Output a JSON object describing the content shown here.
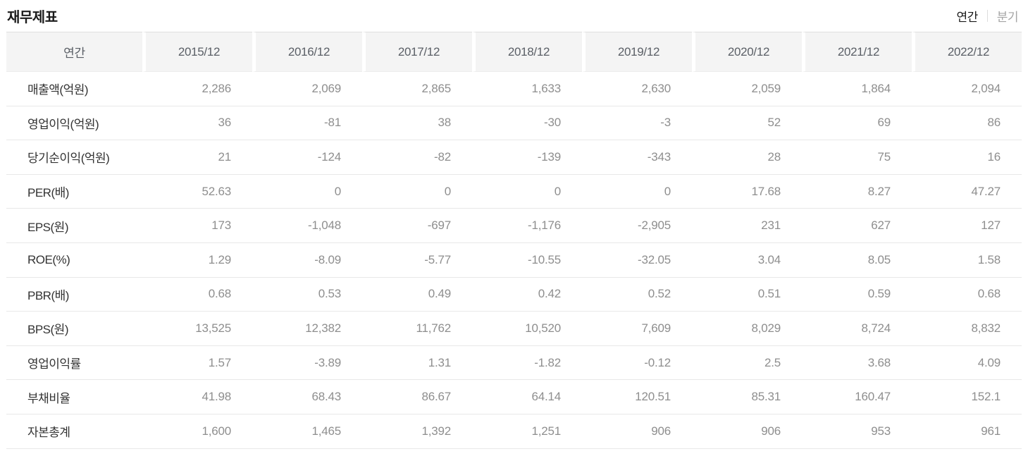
{
  "page_title": "재무제표",
  "toggle": {
    "annual_label": "연간",
    "quarterly_label": "분기",
    "active": "연간"
  },
  "table": {
    "header": [
      "연간",
      "2015/12",
      "2016/12",
      "2017/12",
      "2018/12",
      "2019/12",
      "2020/12",
      "2021/12",
      "2022/12"
    ],
    "rows": [
      {
        "label": "매출액(억원)",
        "values": [
          "2,286",
          "2,069",
          "2,865",
          "1,633",
          "2,630",
          "2,059",
          "1,864",
          "2,094"
        ]
      },
      {
        "label": "영업이익(억원)",
        "values": [
          "36",
          "-81",
          "38",
          "-30",
          "-3",
          "52",
          "69",
          "86"
        ]
      },
      {
        "label": "당기순이익(억원)",
        "values": [
          "21",
          "-124",
          "-82",
          "-139",
          "-343",
          "28",
          "75",
          "16"
        ]
      },
      {
        "label": "PER(배)",
        "values": [
          "52.63",
          "0",
          "0",
          "0",
          "0",
          "17.68",
          "8.27",
          "47.27"
        ]
      },
      {
        "label": "EPS(원)",
        "values": [
          "173",
          "-1,048",
          "-697",
          "-1,176",
          "-2,905",
          "231",
          "627",
          "127"
        ]
      },
      {
        "label": "ROE(%)",
        "values": [
          "1.29",
          "-8.09",
          "-5.77",
          "-10.55",
          "-32.05",
          "3.04",
          "8.05",
          "1.58"
        ]
      },
      {
        "label": "PBR(배)",
        "values": [
          "0.68",
          "0.53",
          "0.49",
          "0.42",
          "0.52",
          "0.51",
          "0.59",
          "0.68"
        ]
      },
      {
        "label": "BPS(원)",
        "values": [
          "13,525",
          "12,382",
          "11,762",
          "10,520",
          "7,609",
          "8,029",
          "8,724",
          "8,832"
        ]
      },
      {
        "label": "영업이익률",
        "values": [
          "1.57",
          "-3.89",
          "1.31",
          "-1.82",
          "-0.12",
          "2.5",
          "3.68",
          "4.09"
        ]
      },
      {
        "label": "부채비율",
        "values": [
          "41.98",
          "68.43",
          "86.67",
          "64.14",
          "120.51",
          "85.31",
          "160.47",
          "152.1"
        ]
      },
      {
        "label": "자본총계",
        "values": [
          "1,600",
          "1,465",
          "1,392",
          "1,251",
          "906",
          "906",
          "953",
          "961"
        ]
      }
    ]
  },
  "colors": {
    "header_bg": "#f4f4f4",
    "row_border": "#e8e8e8",
    "label_text": "#333333",
    "value_text": "#8e8e8e",
    "active_toggle": "#1b1b1b",
    "inactive_toggle": "#a5a5a5"
  }
}
